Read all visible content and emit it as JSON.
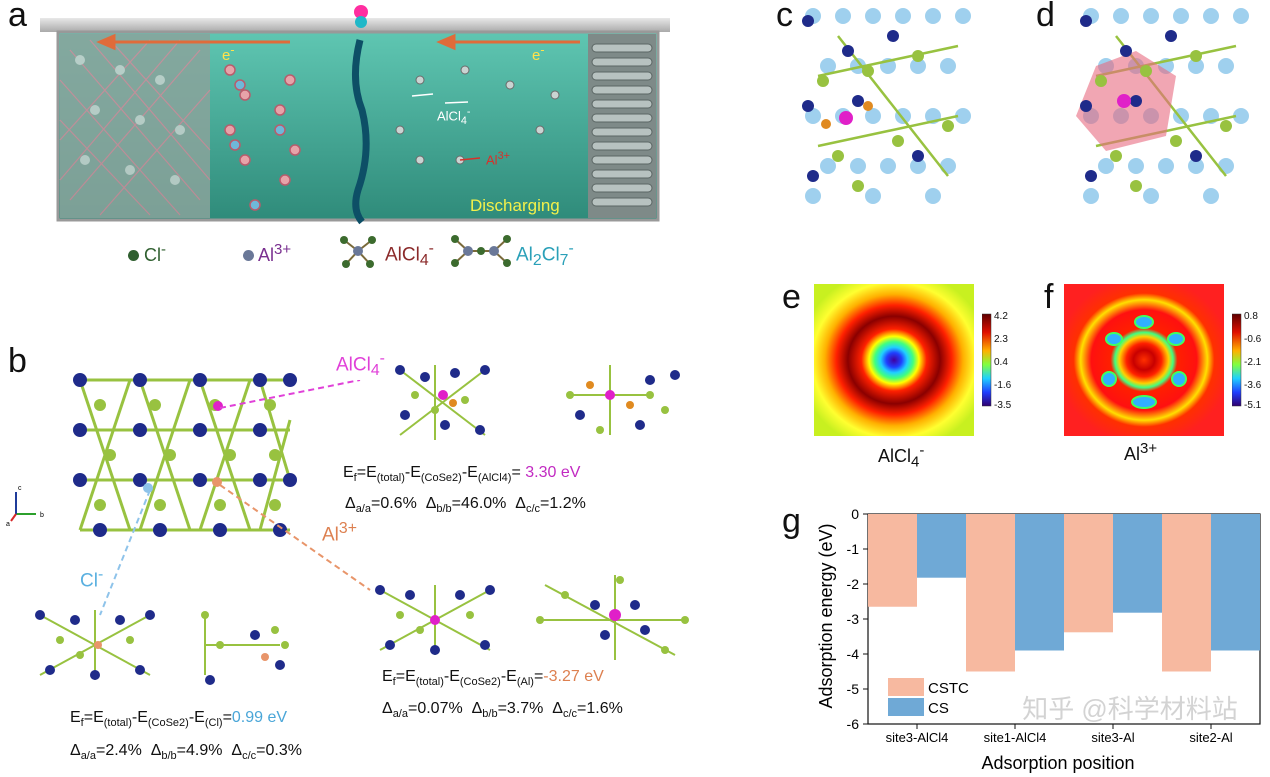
{
  "panel_labels": {
    "a": "a",
    "b": "b",
    "c": "c",
    "d": "d",
    "e": "e",
    "f": "f",
    "g": "g"
  },
  "panel_a": {
    "electron": "e",
    "electron_sup": "-",
    "discharging": "Discharging",
    "ion_label": "AlCl",
    "ion_sub": "4",
    "ion_sup": "-",
    "al_label": "Al",
    "al_sup": "3+",
    "legend": [
      {
        "name": "Cl",
        "sup": "-",
        "color": "#2f5f2f"
      },
      {
        "name": "Al",
        "sup": "3+",
        "color": "#6a7898"
      },
      {
        "name": "AlCl",
        "sub": "4",
        "sup": "-",
        "color": "#8b2a2a"
      },
      {
        "name": "Al",
        "sub": "2",
        "name2": "Cl",
        "sub2": "7",
        "sup": "-",
        "color": "#2aa0b8"
      }
    ]
  },
  "panel_b": {
    "alcl4_label": "AlCl",
    "alcl4_sub": "4",
    "alcl4_sup": "-",
    "al_label": "Al",
    "al_sup": "3+",
    "cl_label": "Cl",
    "cl_sup": "-",
    "eq_alcl4": {
      "value": "3.30 eV",
      "sub_mid": "(CoSe2)",
      "sub_last": "(AlCl4)"
    },
    "delta_alcl4": {
      "a": "=0.6%",
      "b": "=46.0%",
      "c": "=1.2%"
    },
    "eq_al": {
      "value": "-3.27 eV",
      "sub_mid": "(CoSe2)",
      "sub_last": "(Al)"
    },
    "delta_al": {
      "a": "=0.07%",
      "b": "=3.7%",
      "c": "=1.6%"
    },
    "eq_cl": {
      "value": "0.99 eV",
      "sub_mid": "(CoSe2)",
      "sub_last": "(Cl)"
    },
    "delta_cl": {
      "a": "=2.4%",
      "b": "=4.9%",
      "c": "=0.3%"
    },
    "ef": "E",
    "ef_sub": "f",
    "eq_eq": "=E",
    "total_sub": "(total)",
    "minus_e": "-E",
    "delta": "Δ",
    "a_sub": "a/a",
    "b_sub": "b/b",
    "c_sub": "c/c",
    "axis_a": "a",
    "axis_b": "b",
    "axis_c": "c"
  },
  "panel_e": {
    "ticks": [
      "4.2",
      "2.3",
      "0.4",
      "-1.6",
      "-3.5"
    ],
    "label": "AlCl",
    "label_sub": "4",
    "label_sup": "-"
  },
  "panel_f": {
    "ticks": [
      "0.8",
      "-0.6",
      "-2.1",
      "-3.6",
      "-5.1"
    ],
    "label": "Al",
    "label_sup": "3+"
  },
  "chart_data": {
    "type": "bar",
    "categories": [
      "site3-AlCl4",
      "site1-AlCl4",
      "site3-Al",
      "site2-Al"
    ],
    "tick_labels": [
      "site3-AlCl4",
      "site1-AlCl4",
      "site3-Al",
      "site2-Al"
    ],
    "series": [
      {
        "name": "CSTC",
        "color": "#f7b9a0",
        "values": [
          -2.65,
          -4.5,
          -3.38,
          -4.5
        ]
      },
      {
        "name": "CS",
        "color": "#6fa9d6",
        "values": [
          -1.82,
          -3.9,
          -2.82,
          -3.9
        ]
      }
    ],
    "xlabel": "Adsorption position",
    "ylabel": "Adsorption energy (eV)",
    "ylim": [
      -6,
      0
    ],
    "yticks": [
      "0",
      "-1",
      "-2",
      "-3",
      "-4",
      "-5",
      "-6"
    ],
    "legend_position": "bottom-left"
  },
  "watermark": "知乎 @科学材料站"
}
